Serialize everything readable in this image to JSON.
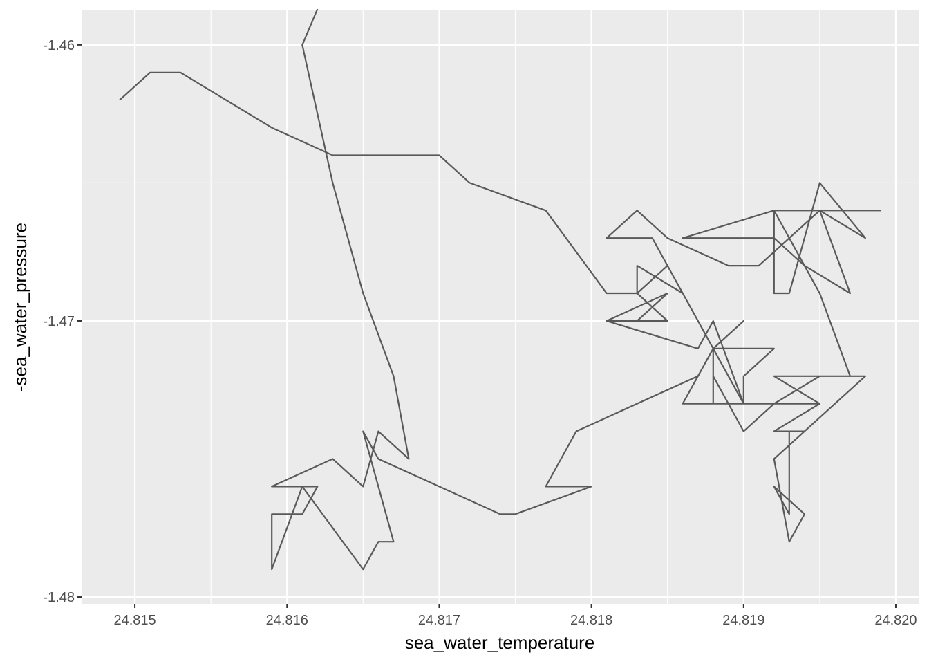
{
  "chart_data": {
    "type": "line",
    "title": "",
    "xlabel": "sea_water_temperature",
    "ylabel": "-sea_water_pressure",
    "xlim": [
      24.81465,
      24.82015
    ],
    "ylim": [
      -1.48025,
      -1.45875
    ],
    "x_ticks": [
      "24.815",
      "24.816",
      "24.817",
      "24.818",
      "24.819",
      "24.820"
    ],
    "y_ticks": [
      "-1.46",
      "-1.47",
      "-1.48"
    ],
    "grid": true,
    "background": "#ebebeb",
    "line_color": "#595959",
    "x": [
      24.8162,
      24.8161,
      24.8163,
      24.8165,
      24.8167,
      24.8168,
      24.8166,
      24.8165,
      24.8163,
      24.8159,
      24.8162,
      24.8161,
      24.8159,
      24.8159,
      24.8161,
      24.8165,
      24.8166,
      24.8167,
      24.8166,
      24.8165,
      24.8166,
      24.817,
      24.8174,
      24.8175,
      24.818,
      24.8177,
      24.8179,
      24.8187,
      24.8188,
      24.819,
      24.8188,
      24.819,
      24.8192,
      24.8188,
      24.8188,
      24.8186,
      24.8195,
      24.819,
      24.8188,
      24.8192,
      24.819,
      24.819,
      24.8188,
      24.8187,
      24.8181,
      24.8185,
      24.8183,
      24.8181,
      24.8185,
      24.8183,
      24.8183,
      24.8186,
      24.8184,
      24.8181,
      24.8183,
      24.8185,
      24.8189,
      24.8191,
      24.8195,
      24.8199,
      24.8195,
      24.8198,
      24.8195,
      24.8193,
      24.8192,
      24.8192,
      24.8186,
      24.819,
      24.8192,
      24.8194,
      24.8197,
      24.8195,
      24.8192,
      24.8195,
      24.8197,
      24.8192,
      24.8195,
      24.8192,
      24.8194,
      24.8193,
      24.8193,
      24.8192,
      24.8194,
      24.8193,
      24.8192,
      24.8198,
      24.8195,
      24.8192,
      24.819,
      24.8188,
      24.8188,
      24.8185,
      24.8183,
      24.8181,
      24.8177,
      24.8172,
      24.817,
      24.8163,
      24.8159,
      24.8153,
      24.8151,
      24.8149
    ],
    "y": [
      -1.4587,
      -1.46,
      -1.465,
      -1.469,
      -1.472,
      -1.475,
      -1.474,
      -1.476,
      -1.475,
      -1.476,
      -1.476,
      -1.477,
      -1.477,
      -1.479,
      -1.476,
      -1.479,
      -1.478,
      -1.478,
      -1.476,
      -1.474,
      -1.475,
      -1.476,
      -1.477,
      -1.477,
      -1.476,
      -1.476,
      -1.474,
      -1.472,
      -1.471,
      -1.47,
      -1.471,
      -1.473,
      -1.473,
      -1.473,
      -1.471,
      -1.473,
      -1.473,
      -1.473,
      -1.471,
      -1.471,
      -1.472,
      -1.473,
      -1.47,
      -1.471,
      -1.47,
      -1.469,
      -1.47,
      -1.47,
      -1.47,
      -1.469,
      -1.468,
      -1.469,
      -1.467,
      -1.467,
      -1.466,
      -1.467,
      -1.468,
      -1.468,
      -1.466,
      -1.466,
      -1.466,
      -1.467,
      -1.465,
      -1.469,
      -1.469,
      -1.466,
      -1.467,
      -1.467,
      -1.467,
      -1.468,
      -1.469,
      -1.466,
      -1.466,
      -1.469,
      -1.472,
      -1.472,
      -1.473,
      -1.474,
      -1.474,
      -1.474,
      -1.477,
      -1.476,
      -1.477,
      -1.478,
      -1.475,
      -1.472,
      -1.472,
      -1.473,
      -1.474,
      -1.472,
      -1.471,
      -1.468,
      -1.469,
      -1.469,
      -1.466,
      -1.465,
      -1.464,
      -1.464,
      -1.463,
      -1.461,
      -1.461,
      -1.462
    ]
  }
}
